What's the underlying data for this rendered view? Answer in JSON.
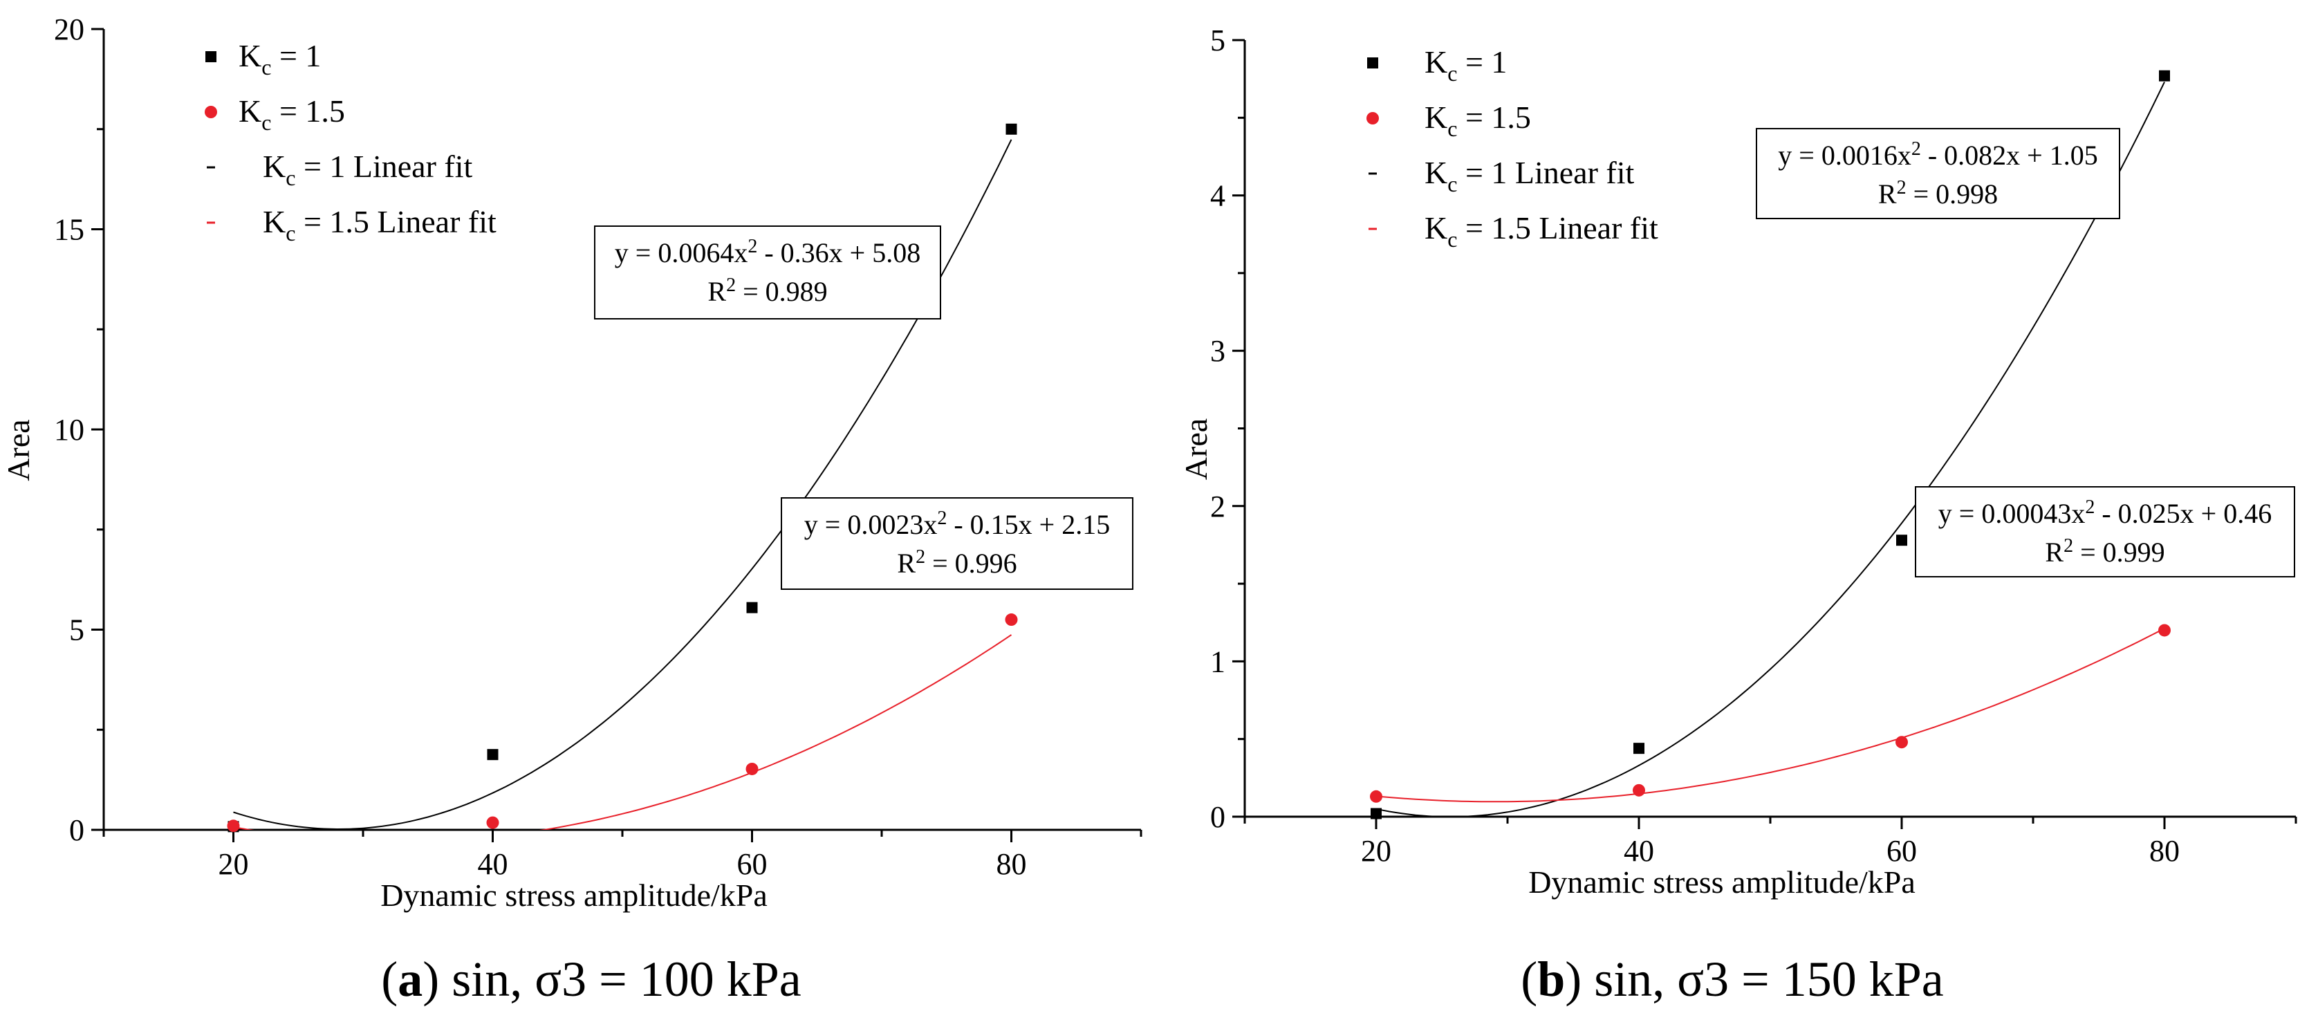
{
  "chart_data": [
    {
      "type": "scatter",
      "caption_letter": "a",
      "caption_rest": " sin, σ3 = 100 kPa",
      "xlabel": "Dynamic stress amplitude/kPa",
      "ylabel": "Area",
      "xlim": [
        10,
        90
      ],
      "ylim": [
        0,
        20
      ],
      "x_ticks": [
        20,
        40,
        60,
        80
      ],
      "y_ticks": [
        0,
        5,
        10,
        15,
        20
      ],
      "legend": [
        {
          "label": "Kc = 1",
          "base": "K",
          "sub": "c",
          "rest": " = 1",
          "marker": "square",
          "color": "#000000"
        },
        {
          "label": "Kc = 1.5",
          "base": "K",
          "sub": "c",
          "rest": " = 1.5",
          "marker": "circle",
          "color": "#e8202a"
        },
        {
          "label": "Kc = 1 Linear fit",
          "base": "K",
          "sub": "c",
          "rest": " = 1 Linear fit",
          "marker": "line",
          "color": "#000000"
        },
        {
          "label": "Kc = 1.5 Linear fit",
          "base": "K",
          "sub": "c",
          "rest": " = 1.5 Linear fit",
          "marker": "line",
          "color": "#e8202a"
        }
      ],
      "series": [
        {
          "name": "Kc = 1",
          "color": "#000000",
          "marker": "square",
          "x": [
            20,
            40,
            60,
            80
          ],
          "y": [
            0.08,
            1.88,
            5.55,
            17.5
          ],
          "fit": {
            "a": 0.0064,
            "b": -0.36,
            "c": 5.08,
            "x_range": [
              20,
              80
            ],
            "eq_prefix": "y = 0.0064x",
            "eq_suffix": " - 0.36x + 5.08",
            "r2_label": "R",
            "r2_value": " = 0.989"
          }
        },
        {
          "name": "Kc = 1.5",
          "color": "#e8202a",
          "marker": "circle",
          "x": [
            20,
            40,
            60,
            80
          ],
          "y": [
            0.1,
            0.18,
            1.52,
            5.25
          ],
          "fit": {
            "a": 0.0023,
            "b": -0.15,
            "c": 2.15,
            "x_range": [
              20,
              80
            ],
            "eq_prefix": "y = 0.0023x",
            "eq_suffix": " - 0.15x + 2.15",
            "r2_label": "R",
            "r2_value": " = 0.996"
          }
        }
      ]
    },
    {
      "type": "scatter",
      "caption_letter": "b",
      "caption_rest": " sin, σ3 = 150 kPa",
      "xlabel": "Dynamic stress amplitude/kPa",
      "ylabel": "Area",
      "xlim": [
        10,
        90
      ],
      "ylim": [
        0,
        5
      ],
      "x_ticks": [
        20,
        40,
        60,
        80
      ],
      "y_ticks": [
        0,
        1,
        2,
        3,
        4,
        5
      ],
      "legend": [
        {
          "label": "Kc = 1",
          "base": "K",
          "sub": "c",
          "rest": " = 1",
          "marker": "square",
          "color": "#000000"
        },
        {
          "label": "Kc = 1.5",
          "base": "K",
          "sub": "c",
          "rest": " = 1.5",
          "marker": "circle",
          "color": "#e8202a"
        },
        {
          "label": "Kc = 1 Linear fit",
          "base": "K",
          "sub": "c",
          "rest": " = 1 Linear fit",
          "marker": "line",
          "color": "#000000"
        },
        {
          "label": "Kc = 1.5 Linear fit",
          "base": "K",
          "sub": "c",
          "rest": " = 1.5 Linear fit",
          "marker": "line",
          "color": "#e8202a"
        }
      ],
      "series": [
        {
          "name": "Kc = 1",
          "color": "#000000",
          "marker": "square",
          "x": [
            20,
            40,
            60,
            80
          ],
          "y": [
            0.02,
            0.44,
            1.78,
            4.77
          ],
          "fit": {
            "a": 0.0016,
            "b": -0.082,
            "c": 1.05,
            "x_range": [
              20,
              80
            ],
            "eq_prefix": "y = 0.0016x",
            "eq_suffix": " - 0.082x + 1.05",
            "r2_label": "R",
            "r2_value": " = 0.998"
          }
        },
        {
          "name": "Kc = 1.5",
          "color": "#e8202a",
          "marker": "circle",
          "x": [
            20,
            40,
            60,
            80
          ],
          "y": [
            0.13,
            0.17,
            0.48,
            1.2
          ],
          "fit": {
            "a": 0.00043,
            "b": -0.025,
            "c": 0.46,
            "x_range": [
              20,
              80
            ],
            "eq_prefix": "y = 0.00043x",
            "eq_suffix": " - 0.025x + 0.46",
            "r2_label": "R",
            "r2_value": " = 0.999"
          }
        }
      ]
    }
  ]
}
